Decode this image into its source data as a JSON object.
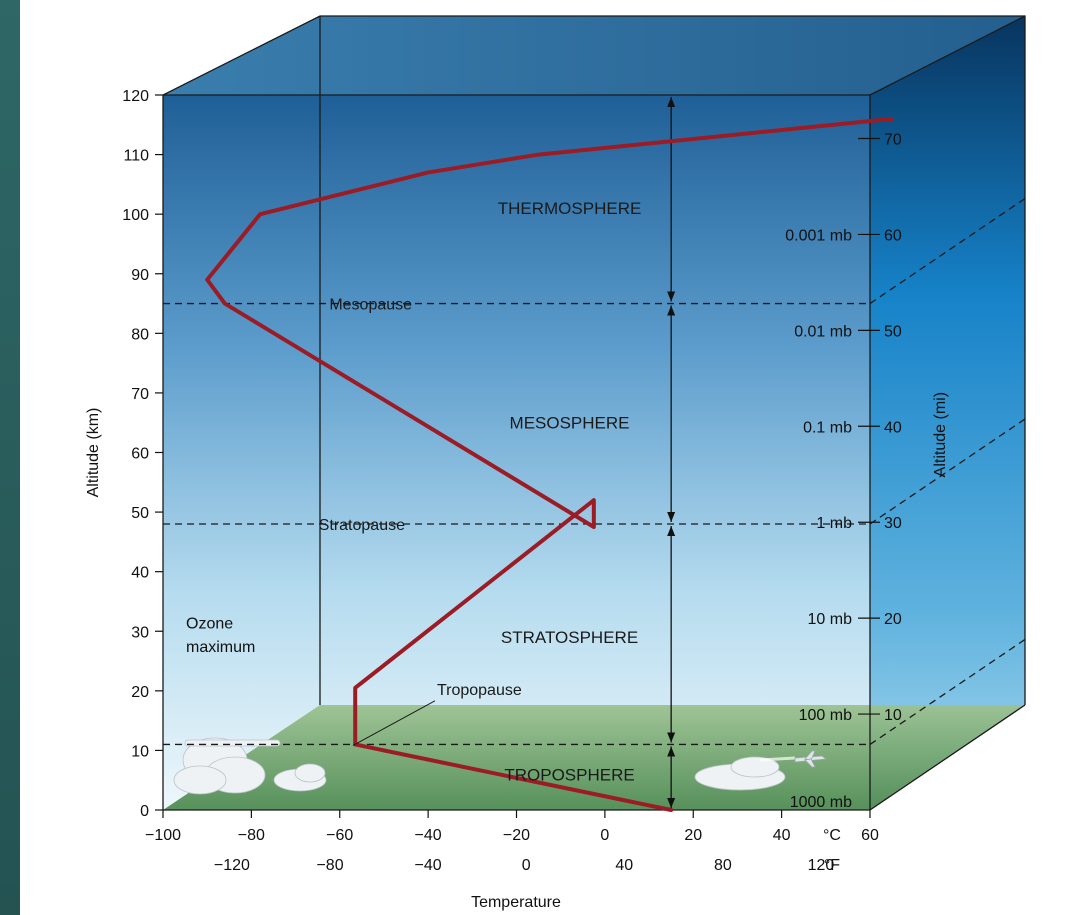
{
  "chart_data": {
    "type": "line",
    "xlabel": "Temperature",
    "ylabel": "Altitude (km)",
    "y2label": "Altitude (mi)",
    "xlim": [
      -100,
      60
    ],
    "ylim": [
      0,
      120
    ],
    "x_unit_c": "°C",
    "x_unit_f": "°F",
    "y_ticks": [
      0,
      10,
      20,
      30,
      40,
      50,
      60,
      70,
      80,
      90,
      100,
      110,
      120
    ],
    "x_ticks_c": [
      -100,
      -80,
      -60,
      -40,
      -20,
      0,
      20,
      40,
      60
    ],
    "x_ticks_f": [
      {
        "label": "-120",
        "c": -84.4
      },
      {
        "label": "-80",
        "c": -62.2
      },
      {
        "label": "-40",
        "c": -40
      },
      {
        "label": "0",
        "c": -17.8
      },
      {
        "label": "40",
        "c": 4.4
      },
      {
        "label": "80",
        "c": 26.7
      },
      {
        "label": "120",
        "c": 48.9
      }
    ],
    "y2_ticks_mi": [
      {
        "label": "10",
        "km": 16.1
      },
      {
        "label": "20",
        "km": 32.2
      },
      {
        "label": "30",
        "km": 48.3
      },
      {
        "label": "40",
        "km": 64.4
      },
      {
        "label": "50",
        "km": 80.5
      },
      {
        "label": "60",
        "km": 96.6
      },
      {
        "label": "70",
        "km": 112.7
      }
    ],
    "pressure_labels": [
      {
        "label": "0.001 mb",
        "km": 96.6
      },
      {
        "label": "0.01 mb",
        "km": 80.5
      },
      {
        "label": "0.1 mb",
        "km": 64.4
      },
      {
        "label": "1 mb",
        "km": 48.3
      },
      {
        "label": "10 mb",
        "km": 32.2
      },
      {
        "label": "100 mb",
        "km": 16.1
      },
      {
        "label": "1000 mb",
        "km": 1.5
      }
    ],
    "series": [
      {
        "x": [
          15,
          -56.5,
          -56.5,
          -2.5,
          -2.5,
          -86,
          -90,
          -78,
          -40,
          -15,
          65
        ],
        "y": [
          0,
          11,
          20.5,
          52,
          47.5,
          85,
          89,
          100,
          107,
          110,
          116
        ]
      }
    ],
    "boundaries": [
      {
        "name": "Mesopause",
        "km": 85
      },
      {
        "name": "Stratopause",
        "km": 48
      },
      {
        "name": "Tropopause",
        "km": 11
      }
    ],
    "layers": [
      {
        "name": "THERMOSPHERE",
        "km": 101
      },
      {
        "name": "MESOSPHERE",
        "km": 65
      },
      {
        "name": "STRATOSPHERE",
        "km": 29
      },
      {
        "name": "TROPOSPHERE",
        "km": 6
      }
    ],
    "annotations": [
      {
        "text": "Ozone",
        "km": 31.5
      },
      {
        "text": "maximum",
        "km": 27.5
      }
    ],
    "colors": {
      "profile_line": "#9b1c24",
      "sky_top": "#1f5f97",
      "sky_bottom": "#eaf5fb",
      "ground": "#7fae76",
      "side_face": "#0f5f9a",
      "top_face": "#2f74a4"
    }
  }
}
